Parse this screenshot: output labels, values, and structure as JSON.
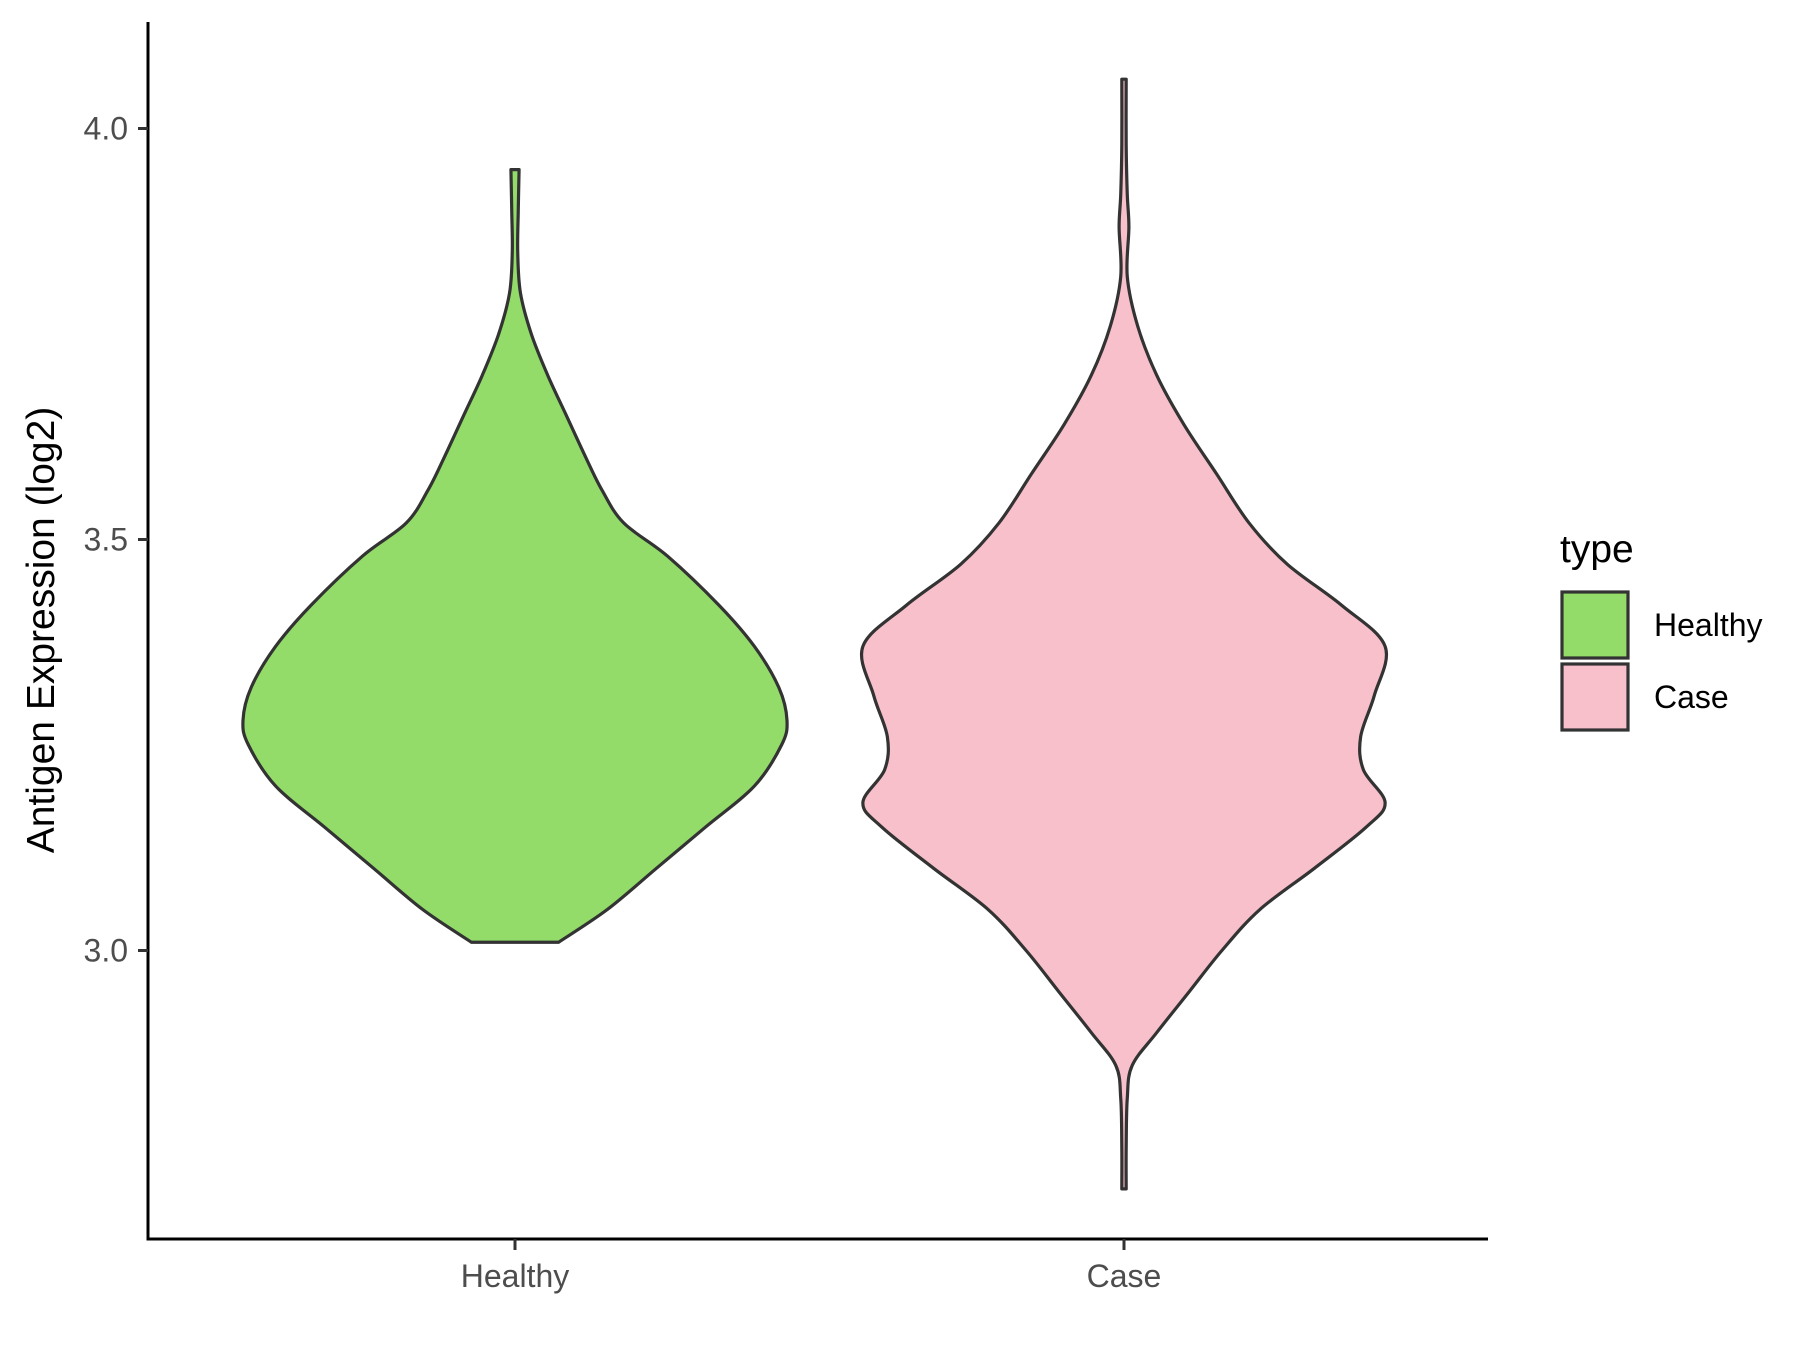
{
  "chart_data": {
    "type": "violin",
    "categories": [
      "Healthy",
      "Case"
    ],
    "xlabel": "",
    "ylabel": "Antigen Expression (log2)",
    "ylim": [
      2.65,
      4.14
    ],
    "yticks": [
      3.0,
      3.5,
      4.0
    ],
    "ytick_labels": [
      "3.0",
      "3.5",
      "4.0"
    ],
    "grid": false,
    "legend": {
      "title": "type",
      "position": "right",
      "entries": [
        {
          "label": "Healthy",
          "color": "#93DC6A"
        },
        {
          "label": "Case",
          "color": "#F7C0CB"
        }
      ]
    },
    "series": [
      {
        "name": "Healthy",
        "color": "#93DC6A",
        "min": 3.01,
        "max": 3.95,
        "density_profile": [
          [
            3.01,
            0.16
          ],
          [
            3.05,
            0.34
          ],
          [
            3.1,
            0.52
          ],
          [
            3.15,
            0.7
          ],
          [
            3.2,
            0.88
          ],
          [
            3.25,
            0.98
          ],
          [
            3.28,
            1.0
          ],
          [
            3.32,
            0.97
          ],
          [
            3.37,
            0.88
          ],
          [
            3.42,
            0.75
          ],
          [
            3.48,
            0.56
          ],
          [
            3.52,
            0.4
          ],
          [
            3.56,
            0.32
          ],
          [
            3.6,
            0.26
          ],
          [
            3.65,
            0.19
          ],
          [
            3.7,
            0.12
          ],
          [
            3.75,
            0.06
          ],
          [
            3.8,
            0.02
          ],
          [
            3.85,
            0.01
          ],
          [
            3.9,
            0.012
          ],
          [
            3.95,
            0.015
          ]
        ]
      },
      {
        "name": "Case",
        "color": "#F7C0CB",
        "min": 2.71,
        "max": 4.06,
        "density_profile": [
          [
            2.71,
            0.008
          ],
          [
            2.76,
            0.008
          ],
          [
            2.82,
            0.012
          ],
          [
            2.86,
            0.03
          ],
          [
            2.9,
            0.12
          ],
          [
            2.95,
            0.24
          ],
          [
            3.0,
            0.36
          ],
          [
            3.05,
            0.5
          ],
          [
            3.1,
            0.7
          ],
          [
            3.15,
            0.89
          ],
          [
            3.18,
            0.96
          ],
          [
            3.22,
            0.88
          ],
          [
            3.26,
            0.87
          ],
          [
            3.31,
            0.92
          ],
          [
            3.37,
            0.96
          ],
          [
            3.42,
            0.8
          ],
          [
            3.47,
            0.6
          ],
          [
            3.52,
            0.46
          ],
          [
            3.58,
            0.34
          ],
          [
            3.64,
            0.22
          ],
          [
            3.7,
            0.12
          ],
          [
            3.76,
            0.05
          ],
          [
            3.82,
            0.012
          ],
          [
            3.88,
            0.018
          ],
          [
            3.92,
            0.012
          ],
          [
            3.98,
            0.008
          ],
          [
            4.06,
            0.008
          ]
        ]
      }
    ]
  }
}
